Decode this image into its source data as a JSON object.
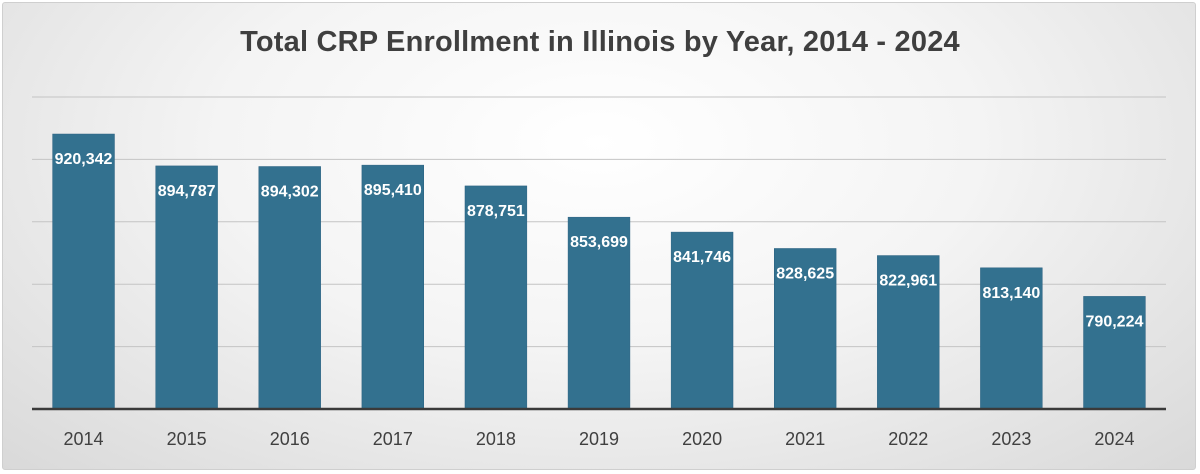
{
  "chart_data": {
    "type": "bar",
    "title": "Total CRP Enrollment in Illinois by Year, 2014 - 2024",
    "categories": [
      "2014",
      "2015",
      "2016",
      "2017",
      "2018",
      "2019",
      "2020",
      "2021",
      "2022",
      "2023",
      "2024"
    ],
    "values": [
      920342,
      894787,
      894302,
      895410,
      878751,
      853699,
      841746,
      828625,
      822961,
      813140,
      790224
    ],
    "data_labels": [
      "920,342",
      "894,787",
      "894,302",
      "895,410",
      "878,751",
      "853,699",
      "841,746",
      "828,625",
      "822,961",
      "813,140",
      "790,224"
    ],
    "xlabel": "",
    "ylabel": "",
    "ylim": [
      700000,
      950000
    ],
    "y_gridlines": [
      750000,
      800000,
      850000,
      900000,
      950000
    ],
    "y_tick_labels_visible": false,
    "grid": true,
    "legend": "none",
    "colors": {
      "bar": "#33718F",
      "bar_edge": "#2a6080",
      "grid": "#c4c4c4",
      "axis": "#3a3a3a"
    }
  }
}
